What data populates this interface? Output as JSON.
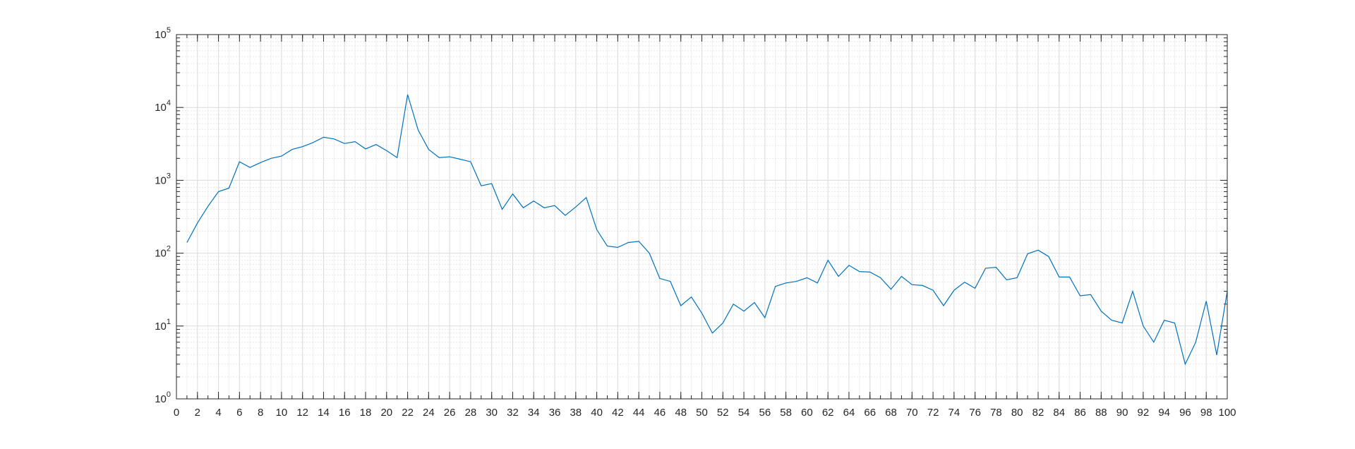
{
  "chart_data": {
    "type": "line",
    "title": "",
    "xlabel": "",
    "ylabel": "",
    "xlim": [
      0,
      100
    ],
    "ylim": [
      1,
      100000
    ],
    "yscale": "log",
    "grid": true,
    "minor_grid": true,
    "line_color": "#0072BD",
    "xticks": [
      0,
      2,
      4,
      6,
      8,
      10,
      12,
      14,
      16,
      18,
      20,
      22,
      24,
      26,
      28,
      30,
      32,
      34,
      36,
      38,
      40,
      42,
      44,
      46,
      48,
      50,
      52,
      54,
      56,
      58,
      60,
      62,
      64,
      66,
      68,
      70,
      72,
      74,
      76,
      78,
      80,
      82,
      84,
      86,
      88,
      90,
      92,
      94,
      96,
      98,
      100
    ],
    "yticks": [
      {
        "base": "10",
        "exp": "0",
        "value": 1
      },
      {
        "base": "10",
        "exp": "1",
        "value": 10
      },
      {
        "base": "10",
        "exp": "2",
        "value": 100
      },
      {
        "base": "10",
        "exp": "3",
        "value": 1000
      },
      {
        "base": "10",
        "exp": "4",
        "value": 10000
      },
      {
        "base": "10",
        "exp": "5",
        "value": 100000
      }
    ],
    "series": [
      {
        "x": [
          1,
          2,
          3,
          4,
          5,
          6,
          7,
          8,
          9,
          10,
          11,
          12,
          13,
          14,
          15,
          16,
          17,
          18,
          19,
          20,
          21,
          22,
          23,
          24,
          25,
          26,
          27,
          28,
          29,
          30,
          31,
          32,
          33,
          34,
          35,
          36,
          37,
          38,
          39,
          40,
          41,
          42,
          43,
          44,
          45,
          46,
          47,
          48,
          49,
          50,
          51,
          52,
          53,
          54,
          55,
          56,
          57,
          58,
          59,
          60,
          61,
          62,
          63,
          64,
          65,
          66,
          67,
          68,
          69,
          70,
          71,
          72,
          73,
          74,
          75,
          76,
          77,
          78,
          79,
          80,
          81,
          82,
          83,
          84,
          85,
          86,
          87,
          88,
          89,
          90,
          91,
          92,
          93,
          94,
          95,
          96,
          97,
          98,
          99,
          100
        ],
        "values": [
          140,
          260,
          440,
          700,
          780,
          1800,
          1500,
          1750,
          2000,
          2150,
          2650,
          2900,
          3300,
          3900,
          3700,
          3200,
          3400,
          2700,
          3100,
          2550,
          2050,
          15000,
          4900,
          2650,
          2050,
          2100,
          1950,
          1800,
          840,
          900,
          400,
          650,
          420,
          520,
          420,
          450,
          330,
          430,
          580,
          210,
          125,
          120,
          140,
          145,
          100,
          45,
          41,
          19,
          25,
          15,
          8,
          11,
          20,
          16,
          21,
          13,
          35,
          39,
          41,
          46,
          39,
          80,
          48,
          68,
          56,
          55,
          46,
          32,
          48,
          37,
          36,
          31,
          19,
          31,
          40,
          33,
          62,
          64,
          43,
          46,
          98,
          110,
          90,
          47,
          47,
          26,
          27,
          16,
          12,
          11,
          30,
          10,
          6,
          12,
          11,
          3,
          6,
          22,
          4,
          30
        ]
      }
    ]
  }
}
